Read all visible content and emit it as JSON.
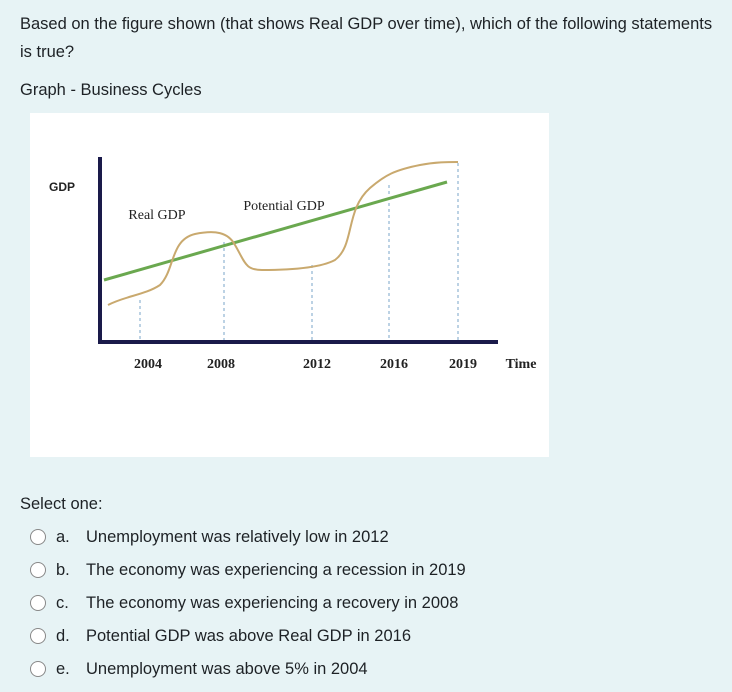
{
  "question": "Based on the figure shown (that shows Real GDP over time), which of the following statements is true?",
  "graph_title": "Graph - Business Cycles",
  "figure": {
    "y_label": "GDP",
    "x_label": "Time",
    "real_gdp_label": "Real GDP",
    "potential_gdp_label": "Potential GDP",
    "x_labels": [
      "2004",
      "2008",
      "2012",
      "2016",
      "2019"
    ]
  },
  "prompt": "Select one:",
  "options": [
    {
      "letter": "a.",
      "text": "Unemployment was relatively low in 2012"
    },
    {
      "letter": "b.",
      "text": "The economy was experiencing a recession in 2019"
    },
    {
      "letter": "c.",
      "text": "The economy was experiencing a recovery in 2008"
    },
    {
      "letter": "d.",
      "text": "Potential GDP was above Real GDP in 2016"
    },
    {
      "letter": "e.",
      "text": "Unemployment was above 5% in 2004"
    }
  ]
}
